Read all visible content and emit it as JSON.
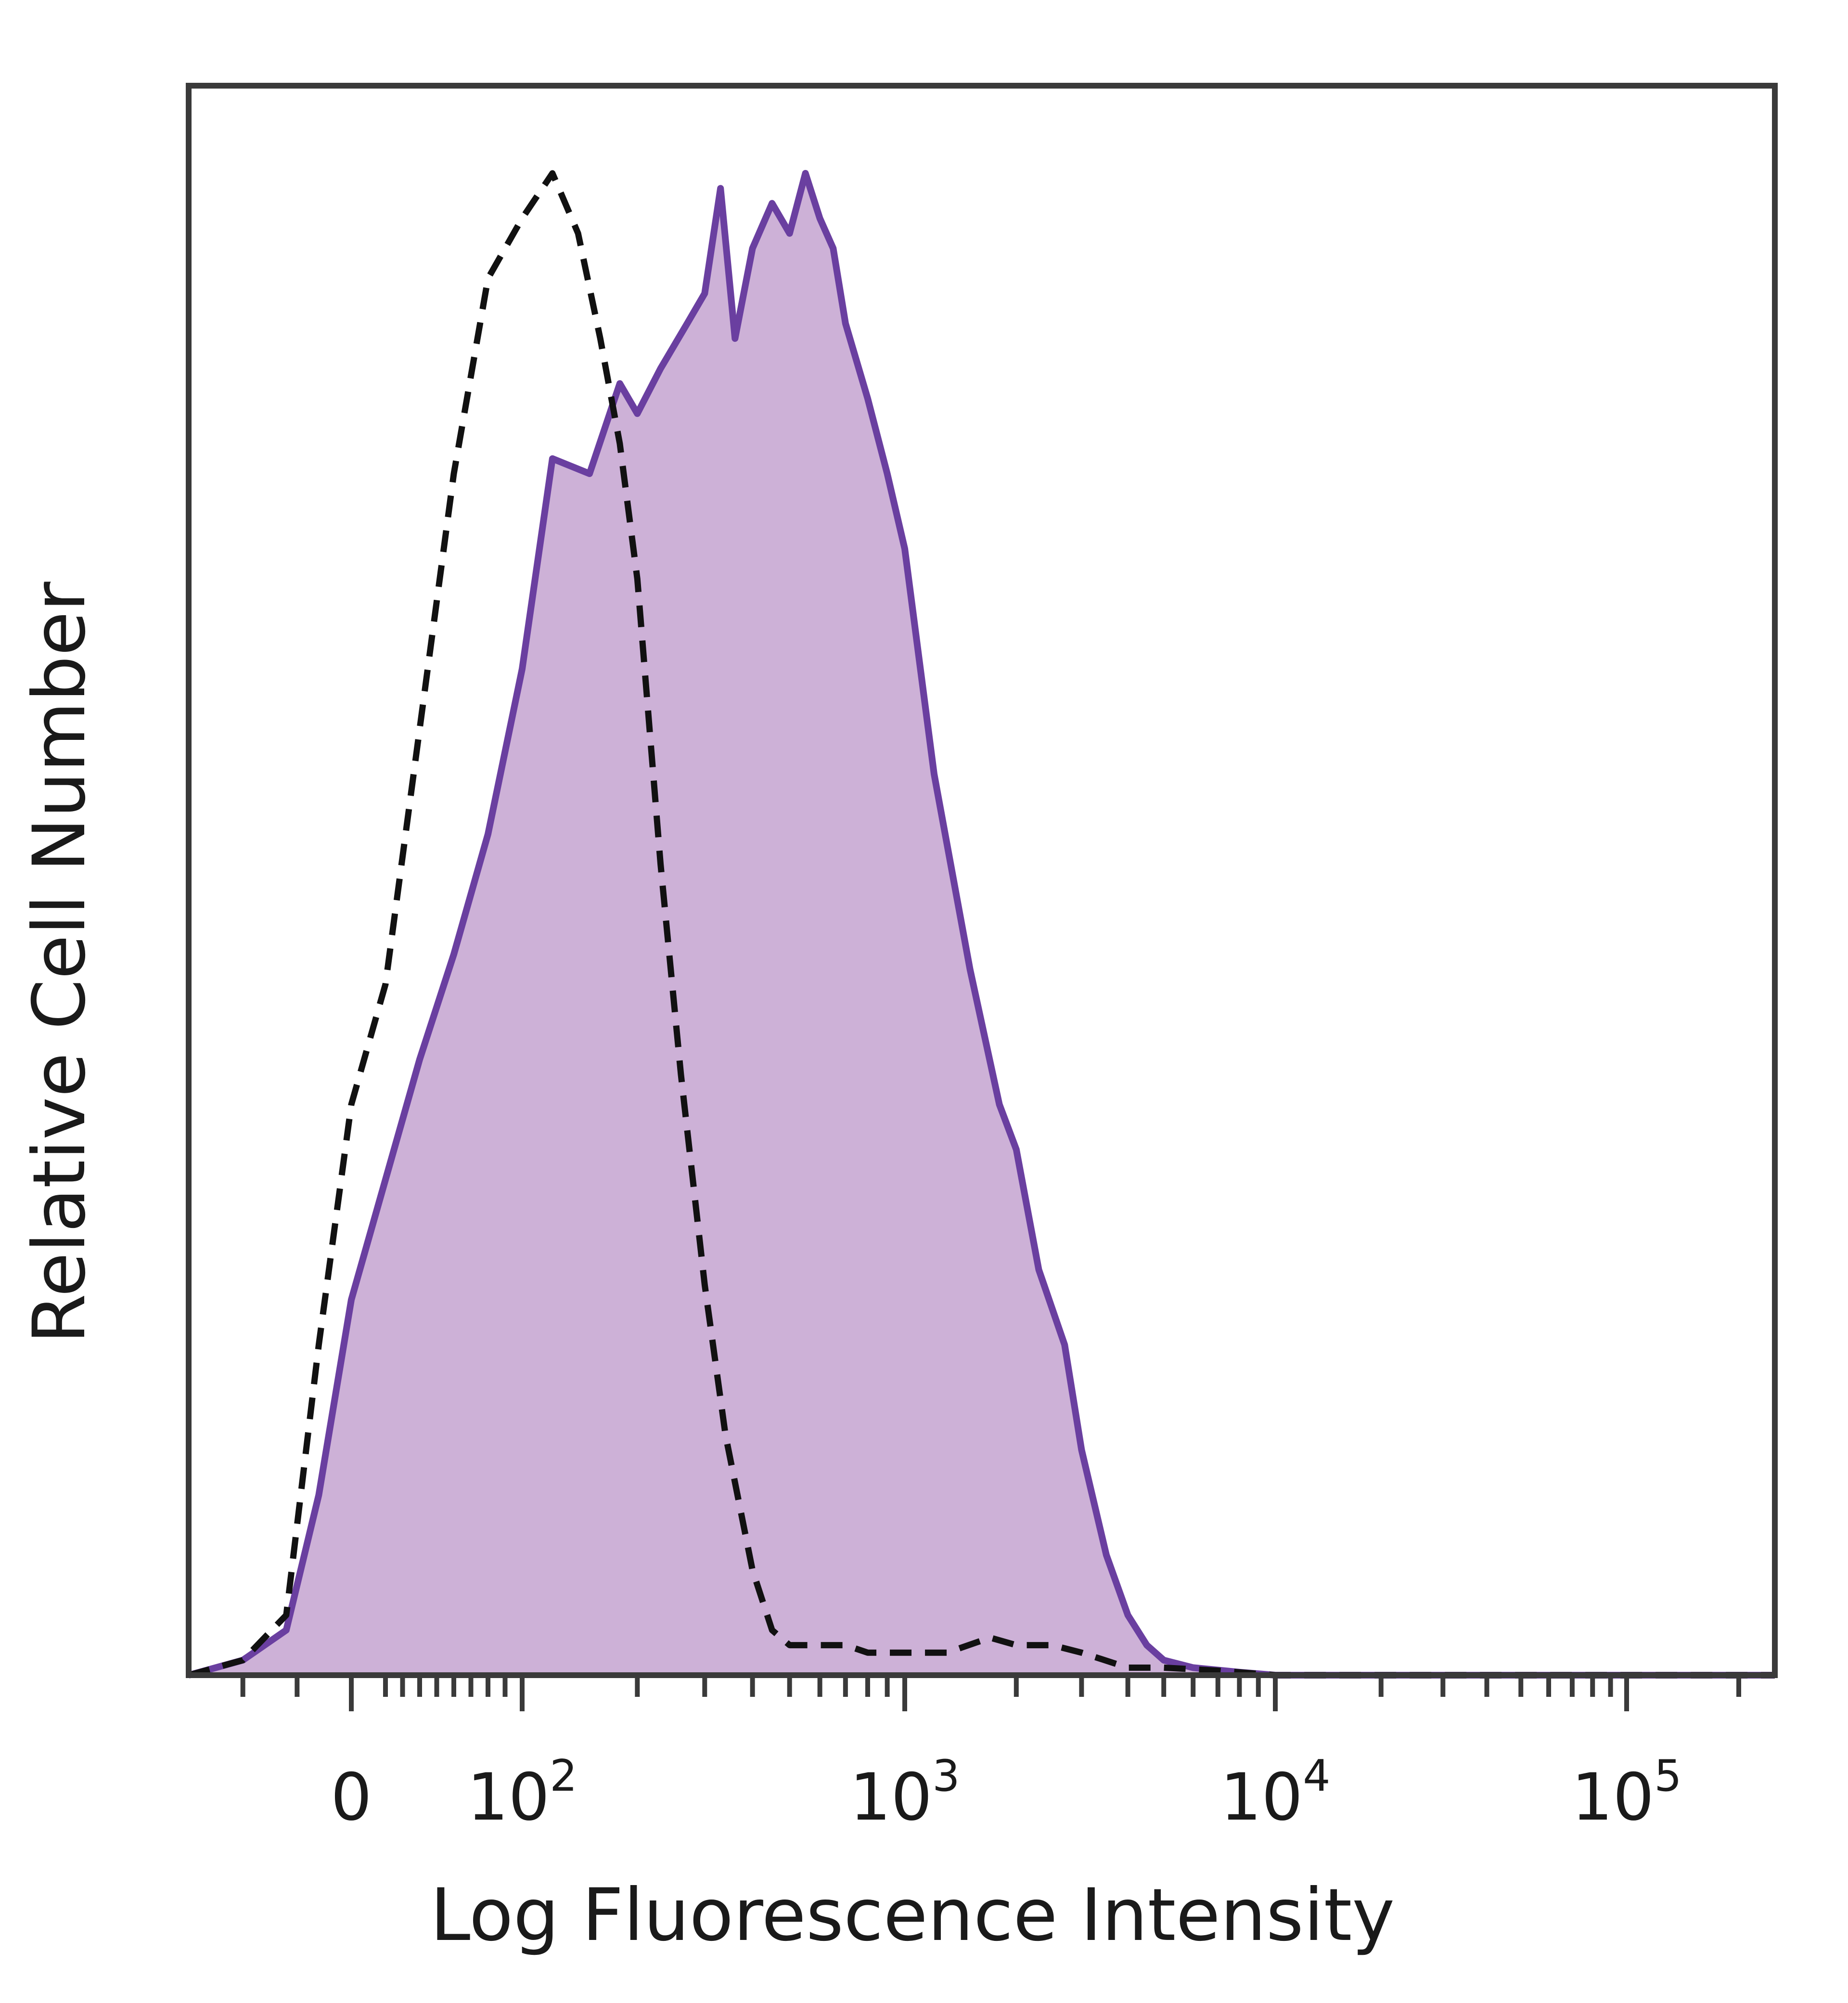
{
  "chart_data": {
    "type": "area",
    "title": "",
    "xlabel": "Log Fluorescence Intensity",
    "ylabel": "Relative Cell Number",
    "x_scale": "biexponential",
    "xlim": [
      -150,
      250000
    ],
    "ylim": [
      0,
      100
    ],
    "grid": false,
    "legend": "none",
    "x_ticks": [
      {
        "value": 0,
        "label": "0",
        "exp": ""
      },
      {
        "value": 100,
        "label": "10",
        "exp": "2"
      },
      {
        "value": 1000,
        "label": "10",
        "exp": "3"
      },
      {
        "value": 10000,
        "label": "10",
        "exp": "4"
      },
      {
        "value": 100000,
        "label": "10",
        "exp": "5"
      }
    ],
    "series": [
      {
        "style": "filled",
        "fill_color": "#cdb1d7",
        "line_color": "#6a3fa0",
        "x": [
          -150,
          -100,
          -60,
          -30,
          0,
          20,
          40,
          60,
          80,
          100,
          120,
          150,
          180,
          200,
          230,
          270,
          300,
          330,
          360,
          400,
          450,
          500,
          550,
          600,
          650,
          700,
          800,
          900,
          1000,
          1200,
          1500,
          1800,
          2000,
          2300,
          2700,
          3000,
          3500,
          4000,
          4500,
          5000,
          6000,
          8000,
          10000,
          100000,
          250000
        ],
        "y": [
          0,
          1,
          3,
          12,
          25,
          33,
          41,
          48,
          56,
          67,
          81,
          80,
          86,
          84,
          87,
          90,
          92,
          99,
          89,
          95,
          98,
          96,
          100,
          97,
          95,
          90,
          85,
          80,
          75,
          60,
          47,
          38,
          35,
          27,
          22,
          15,
          8,
          4,
          2,
          1,
          0.5,
          0.2,
          0,
          0,
          0
        ]
      },
      {
        "style": "dashed",
        "line_color": "#111111",
        "x": [
          -150,
          -100,
          -60,
          -30,
          0,
          20,
          40,
          60,
          80,
          100,
          120,
          140,
          160,
          180,
          200,
          230,
          260,
          300,
          340,
          400,
          450,
          500,
          600,
          700,
          800,
          1000,
          1300,
          1700,
          2000,
          2500,
          3000,
          4000,
          5000,
          7000,
          10000,
          100000,
          250000
        ],
        "y": [
          0,
          1,
          4,
          22,
          38,
          46,
          63,
          80,
          93,
          97,
          100,
          96,
          89,
          82,
          73,
          54,
          40,
          26,
          16,
          7,
          3,
          2,
          2,
          2,
          1.5,
          1.5,
          1.5,
          2.5,
          2,
          2,
          1.5,
          0.5,
          0.5,
          0.3,
          0,
          0,
          0
        ]
      }
    ]
  }
}
